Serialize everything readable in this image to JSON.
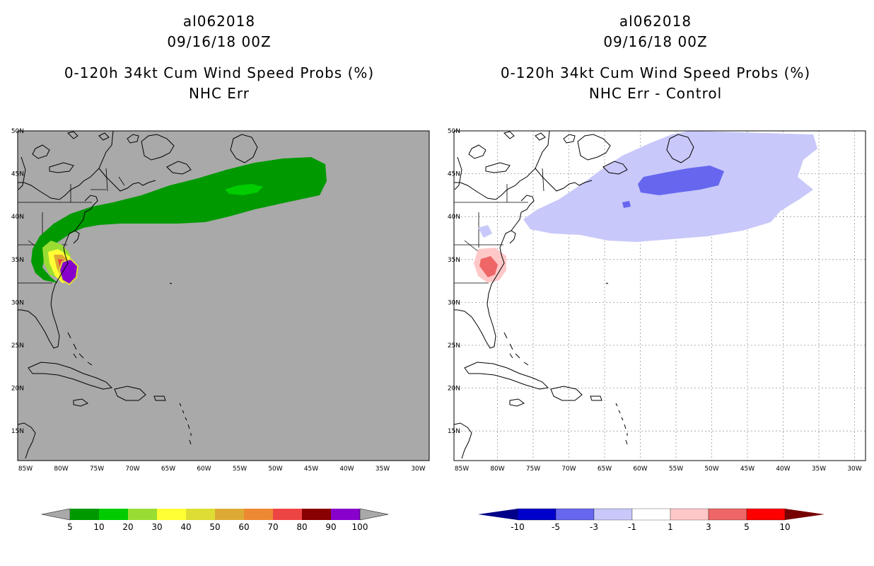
{
  "left_panel": {
    "storm_id": "al062018",
    "datetime": "09/16/18 00Z",
    "product": "0-120h 34kt Cum Wind Speed Probs (%)",
    "subtitle": "NHC Err",
    "colors": {
      "background": "#a9a9a9",
      "land": "#a9a9a9"
    },
    "colorbar": {
      "labels": [
        "5",
        "10",
        "20",
        "30",
        "40",
        "50",
        "60",
        "70",
        "80",
        "90",
        "100"
      ],
      "colors": [
        "#009900",
        "#00cc00",
        "#99dd33",
        "#ffff33",
        "#dddd33",
        "#ddaa33",
        "#ee8833",
        "#ee4444",
        "#880000",
        "#8800cc"
      ],
      "end_color": "#a9a9a9"
    }
  },
  "right_panel": {
    "storm_id": "al062018",
    "datetime": "09/16/18 00Z",
    "product": "0-120h 34kt Cum Wind Speed Probs (%)",
    "subtitle": "NHC Err - Control",
    "colors": {
      "background": "#ffffff"
    },
    "colorbar": {
      "labels": [
        "-10",
        "-5",
        "-3",
        "-1",
        "1",
        "3",
        "5",
        "10"
      ],
      "colors": [
        "#0000cc",
        "#6666ee",
        "#c8c8fa",
        "#ffffff",
        "#ffc8c8",
        "#ee6666",
        "#ff0000"
      ],
      "end_left": "#000088",
      "end_right": "#770000"
    }
  },
  "axes": {
    "lat_labels": [
      "50N",
      "45N",
      "40N",
      "35N",
      "30N",
      "25N",
      "20N",
      "15N"
    ],
    "lon_labels": [
      "85W",
      "80W",
      "75W",
      "70W",
      "65W",
      "60W",
      "55W",
      "50W",
      "45W",
      "40W",
      "35W",
      "30W"
    ]
  }
}
